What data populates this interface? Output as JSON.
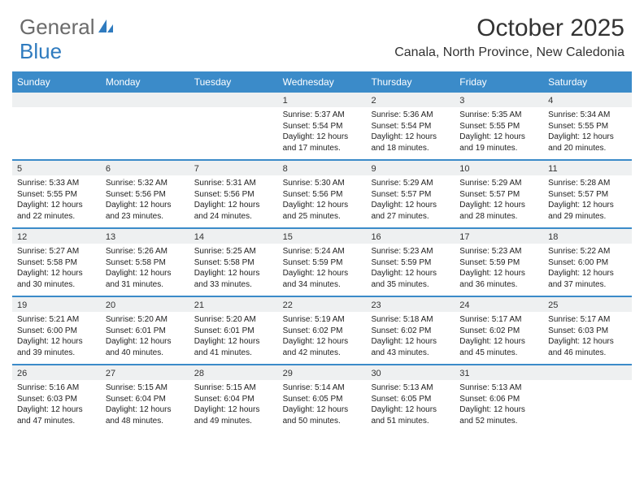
{
  "brand": {
    "part1": "General",
    "part2": "Blue"
  },
  "title": "October 2025",
  "location": "Canala, North Province, New Caledonia",
  "colors": {
    "header_bg": "#3b8bc9",
    "header_text": "#ffffff",
    "daynum_bg": "#eef0f1",
    "week_border": "#3b8bc9",
    "brand_gray": "#6b6b6b",
    "brand_blue": "#2f7bbf"
  },
  "day_names": [
    "Sunday",
    "Monday",
    "Tuesday",
    "Wednesday",
    "Thursday",
    "Friday",
    "Saturday"
  ],
  "weeks": [
    [
      {
        "n": "",
        "sr": "",
        "ss": "",
        "dl": ""
      },
      {
        "n": "",
        "sr": "",
        "ss": "",
        "dl": ""
      },
      {
        "n": "",
        "sr": "",
        "ss": "",
        "dl": ""
      },
      {
        "n": "1",
        "sr": "Sunrise: 5:37 AM",
        "ss": "Sunset: 5:54 PM",
        "dl": "Daylight: 12 hours and 17 minutes."
      },
      {
        "n": "2",
        "sr": "Sunrise: 5:36 AM",
        "ss": "Sunset: 5:54 PM",
        "dl": "Daylight: 12 hours and 18 minutes."
      },
      {
        "n": "3",
        "sr": "Sunrise: 5:35 AM",
        "ss": "Sunset: 5:55 PM",
        "dl": "Daylight: 12 hours and 19 minutes."
      },
      {
        "n": "4",
        "sr": "Sunrise: 5:34 AM",
        "ss": "Sunset: 5:55 PM",
        "dl": "Daylight: 12 hours and 20 minutes."
      }
    ],
    [
      {
        "n": "5",
        "sr": "Sunrise: 5:33 AM",
        "ss": "Sunset: 5:55 PM",
        "dl": "Daylight: 12 hours and 22 minutes."
      },
      {
        "n": "6",
        "sr": "Sunrise: 5:32 AM",
        "ss": "Sunset: 5:56 PM",
        "dl": "Daylight: 12 hours and 23 minutes."
      },
      {
        "n": "7",
        "sr": "Sunrise: 5:31 AM",
        "ss": "Sunset: 5:56 PM",
        "dl": "Daylight: 12 hours and 24 minutes."
      },
      {
        "n": "8",
        "sr": "Sunrise: 5:30 AM",
        "ss": "Sunset: 5:56 PM",
        "dl": "Daylight: 12 hours and 25 minutes."
      },
      {
        "n": "9",
        "sr": "Sunrise: 5:29 AM",
        "ss": "Sunset: 5:57 PM",
        "dl": "Daylight: 12 hours and 27 minutes."
      },
      {
        "n": "10",
        "sr": "Sunrise: 5:29 AM",
        "ss": "Sunset: 5:57 PM",
        "dl": "Daylight: 12 hours and 28 minutes."
      },
      {
        "n": "11",
        "sr": "Sunrise: 5:28 AM",
        "ss": "Sunset: 5:57 PM",
        "dl": "Daylight: 12 hours and 29 minutes."
      }
    ],
    [
      {
        "n": "12",
        "sr": "Sunrise: 5:27 AM",
        "ss": "Sunset: 5:58 PM",
        "dl": "Daylight: 12 hours and 30 minutes."
      },
      {
        "n": "13",
        "sr": "Sunrise: 5:26 AM",
        "ss": "Sunset: 5:58 PM",
        "dl": "Daylight: 12 hours and 31 minutes."
      },
      {
        "n": "14",
        "sr": "Sunrise: 5:25 AM",
        "ss": "Sunset: 5:58 PM",
        "dl": "Daylight: 12 hours and 33 minutes."
      },
      {
        "n": "15",
        "sr": "Sunrise: 5:24 AM",
        "ss": "Sunset: 5:59 PM",
        "dl": "Daylight: 12 hours and 34 minutes."
      },
      {
        "n": "16",
        "sr": "Sunrise: 5:23 AM",
        "ss": "Sunset: 5:59 PM",
        "dl": "Daylight: 12 hours and 35 minutes."
      },
      {
        "n": "17",
        "sr": "Sunrise: 5:23 AM",
        "ss": "Sunset: 5:59 PM",
        "dl": "Daylight: 12 hours and 36 minutes."
      },
      {
        "n": "18",
        "sr": "Sunrise: 5:22 AM",
        "ss": "Sunset: 6:00 PM",
        "dl": "Daylight: 12 hours and 37 minutes."
      }
    ],
    [
      {
        "n": "19",
        "sr": "Sunrise: 5:21 AM",
        "ss": "Sunset: 6:00 PM",
        "dl": "Daylight: 12 hours and 39 minutes."
      },
      {
        "n": "20",
        "sr": "Sunrise: 5:20 AM",
        "ss": "Sunset: 6:01 PM",
        "dl": "Daylight: 12 hours and 40 minutes."
      },
      {
        "n": "21",
        "sr": "Sunrise: 5:20 AM",
        "ss": "Sunset: 6:01 PM",
        "dl": "Daylight: 12 hours and 41 minutes."
      },
      {
        "n": "22",
        "sr": "Sunrise: 5:19 AM",
        "ss": "Sunset: 6:02 PM",
        "dl": "Daylight: 12 hours and 42 minutes."
      },
      {
        "n": "23",
        "sr": "Sunrise: 5:18 AM",
        "ss": "Sunset: 6:02 PM",
        "dl": "Daylight: 12 hours and 43 minutes."
      },
      {
        "n": "24",
        "sr": "Sunrise: 5:17 AM",
        "ss": "Sunset: 6:02 PM",
        "dl": "Daylight: 12 hours and 45 minutes."
      },
      {
        "n": "25",
        "sr": "Sunrise: 5:17 AM",
        "ss": "Sunset: 6:03 PM",
        "dl": "Daylight: 12 hours and 46 minutes."
      }
    ],
    [
      {
        "n": "26",
        "sr": "Sunrise: 5:16 AM",
        "ss": "Sunset: 6:03 PM",
        "dl": "Daylight: 12 hours and 47 minutes."
      },
      {
        "n": "27",
        "sr": "Sunrise: 5:15 AM",
        "ss": "Sunset: 6:04 PM",
        "dl": "Daylight: 12 hours and 48 minutes."
      },
      {
        "n": "28",
        "sr": "Sunrise: 5:15 AM",
        "ss": "Sunset: 6:04 PM",
        "dl": "Daylight: 12 hours and 49 minutes."
      },
      {
        "n": "29",
        "sr": "Sunrise: 5:14 AM",
        "ss": "Sunset: 6:05 PM",
        "dl": "Daylight: 12 hours and 50 minutes."
      },
      {
        "n": "30",
        "sr": "Sunrise: 5:13 AM",
        "ss": "Sunset: 6:05 PM",
        "dl": "Daylight: 12 hours and 51 minutes."
      },
      {
        "n": "31",
        "sr": "Sunrise: 5:13 AM",
        "ss": "Sunset: 6:06 PM",
        "dl": "Daylight: 12 hours and 52 minutes."
      },
      {
        "n": "",
        "sr": "",
        "ss": "",
        "dl": ""
      }
    ]
  ]
}
